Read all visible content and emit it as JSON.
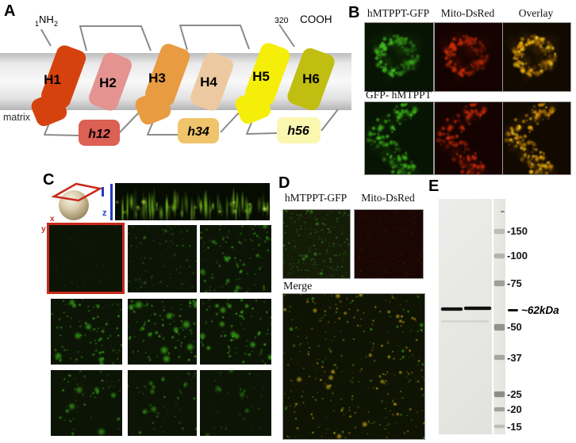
{
  "figure": {
    "panel_a": {
      "label": "A",
      "n_index": "1",
      "n_term": "NH",
      "n_sub": "2",
      "c_index": "320",
      "c_term": "COOH",
      "matrix": "matrix",
      "helices": [
        {
          "name": "H1",
          "color": "#d6420e"
        },
        {
          "name": "H2",
          "color": "#e59390"
        },
        {
          "name": "H3",
          "color": "#e89b41"
        },
        {
          "name": "H4",
          "color": "#edc9a1"
        },
        {
          "name": "H5",
          "color": "#f5ee08"
        },
        {
          "name": "H6",
          "color": "#c0be10"
        }
      ],
      "loops": [
        {
          "name": "h12",
          "color": "#dc6054"
        },
        {
          "name": "h34",
          "color": "#f0c46a"
        },
        {
          "name": "h56",
          "color": "#faf7b0"
        }
      ]
    },
    "panel_b": {
      "label": "B",
      "headers": [
        "hMTPPT-GFP",
        "Mito-DsRed",
        "Overlay"
      ],
      "row2_label": "GFP- hMTPPT"
    },
    "panel_c": {
      "label": "C",
      "x": "x",
      "y": "y",
      "z": "z"
    },
    "panel_d": {
      "label": "D",
      "headers": [
        "hMTPPT-GFP",
        "Mito-DsRed"
      ],
      "merge": "Merge"
    },
    "panel_e": {
      "label": "E",
      "annotation": "~62kDa",
      "markers": [
        "-150",
        "-100",
        "-75",
        "-50",
        "-37",
        "-25",
        "-20",
        "-15"
      ]
    }
  },
  "palette": {
    "gfp": "#46d41e",
    "dsred": "#e83008",
    "overlay": "#f0a008",
    "overlay2": "#ffd818",
    "streak": "#8ae020",
    "membrane_gray": "#d9d9d9",
    "line_gray": "#8a8a8a"
  }
}
